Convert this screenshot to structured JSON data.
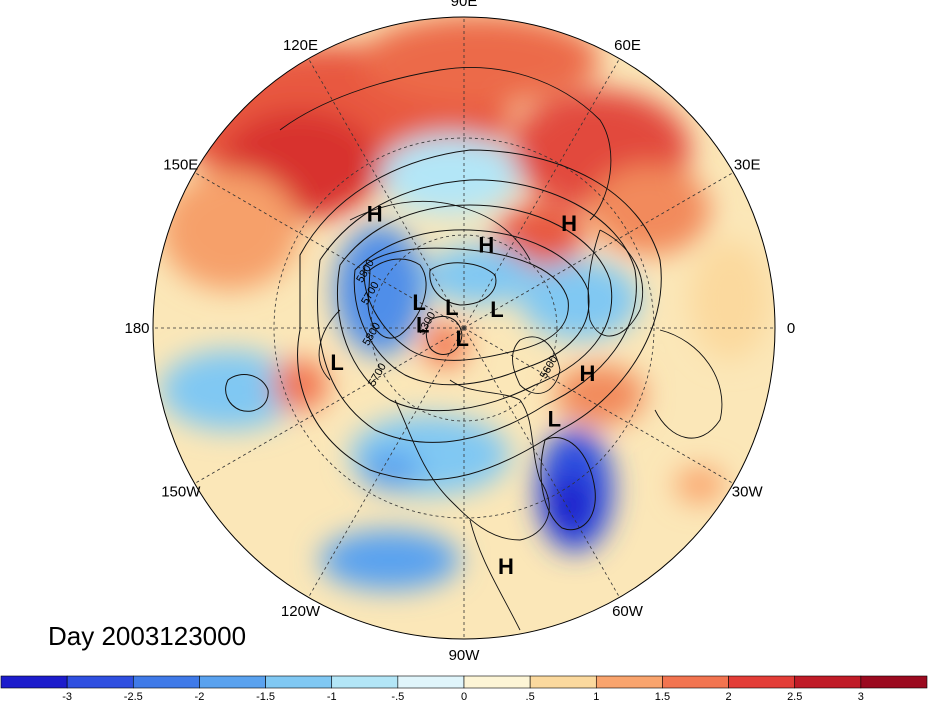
{
  "map": {
    "longitude_labels": [
      {
        "text": "90E",
        "lon": 90
      },
      {
        "text": "60E",
        "lon": 60
      },
      {
        "text": "30E",
        "lon": 30
      },
      {
        "text": "0",
        "lon": 0
      },
      {
        "text": "30W",
        "lon": -30
      },
      {
        "text": "60W",
        "lon": -60
      },
      {
        "text": "90W",
        "lon": -90
      },
      {
        "text": "120W",
        "lon": -120
      },
      {
        "text": "150W",
        "lon": -150
      },
      {
        "text": "180",
        "lon": 180
      },
      {
        "text": "150E",
        "lon": 150
      },
      {
        "text": "120E",
        "lon": 120
      }
    ],
    "contour_labels": [
      {
        "text": "5800",
        "lon": 150,
        "lat": 58
      },
      {
        "text": "5700",
        "lon": 160,
        "lat": 62
      },
      {
        "text": "5800",
        "lon": -175,
        "lat": 64
      },
      {
        "text": "5300",
        "lon": 175,
        "lat": 80
      },
      {
        "text": "5700",
        "lon": -150,
        "lat": 62
      },
      {
        "text": "5600",
        "lon": -25,
        "lat": 62
      }
    ],
    "pressure_centers": [
      {
        "text": "H",
        "lon": 128,
        "lat": 48
      },
      {
        "text": "H",
        "lon": 45,
        "lat": 47
      },
      {
        "text": "H",
        "lon": 75,
        "lat": 65
      },
      {
        "text": "H",
        "lon": -20,
        "lat": 52
      },
      {
        "text": "H",
        "lon": -80,
        "lat": 20
      },
      {
        "text": "L",
        "lon": 150,
        "lat": 75
      },
      {
        "text": "L",
        "lon": 175,
        "lat": 78
      },
      {
        "text": "L",
        "lon": 120,
        "lat": 83
      },
      {
        "text": "L",
        "lon": 30,
        "lat": 79
      },
      {
        "text": "L",
        "lon": -100,
        "lat": 87
      },
      {
        "text": "L",
        "lon": -165,
        "lat": 52
      },
      {
        "text": "L",
        "lon": -45,
        "lat": 53
      }
    ],
    "day_label": "Day 2003123000"
  },
  "colorbar": {
    "tick_labels": [
      "-3",
      "-2.5",
      "-2",
      "-1.5",
      "-1",
      "-.5",
      "0",
      ".5",
      "1",
      "1.5",
      "2",
      "2.5",
      "3"
    ],
    "colors": [
      "#1c1ccc",
      "#2f4fe0",
      "#3f7ae8",
      "#5aa2ef",
      "#80c8f3",
      "#b3e6f7",
      "#e0f5fb",
      "#fdf5d6",
      "#fbd99e",
      "#f9a46d",
      "#f27450",
      "#e33d37",
      "#c01b27",
      "#9b0a1f"
    ]
  }
}
